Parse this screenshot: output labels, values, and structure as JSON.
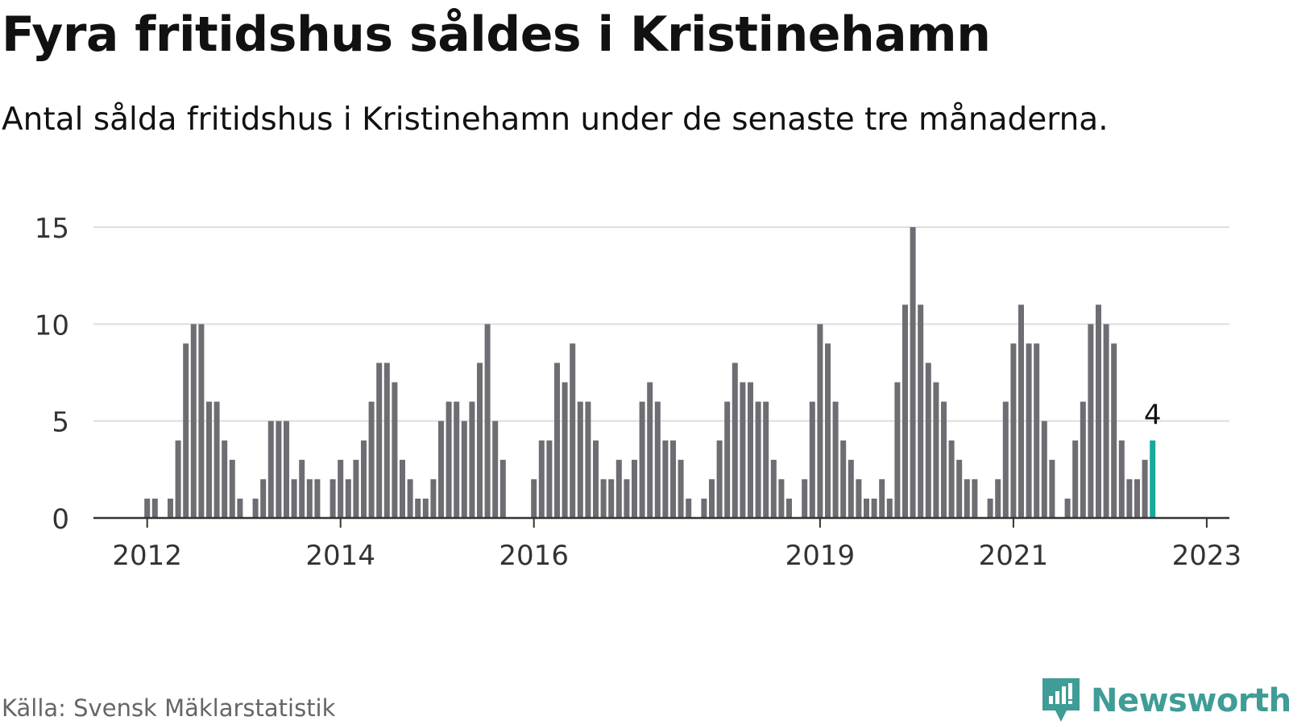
{
  "title": "Fyra fritidshus såldes i Kristinehamn",
  "subtitle": "Antal sålda fritidshus i Kristinehamn under de senaste tre månaderna.",
  "source": "Källa: Svensk Mäklarstatistik",
  "brand": {
    "name": "Newsworthy",
    "icon": "newsworthy-logo-icon",
    "color": "#3f9c96"
  },
  "colors": {
    "bar": "#6e6d73",
    "highlight": "#1aa89c",
    "grid": "#dddddd",
    "axis": "#333333"
  },
  "chart_data": {
    "type": "bar",
    "ylim": [
      0,
      15
    ],
    "yticks": [
      0,
      5,
      10,
      15
    ],
    "grid": true,
    "xtick_labels": [
      "2012",
      "2014",
      "2016",
      "2019",
      "2021",
      "2023"
    ],
    "xtick_index": [
      2,
      27,
      52,
      89,
      114,
      139
    ],
    "values": [
      0,
      0,
      1,
      1,
      0,
      1,
      4,
      9,
      10,
      10,
      6,
      6,
      4,
      3,
      1,
      0,
      1,
      2,
      5,
      5,
      5,
      2,
      3,
      2,
      2,
      0,
      2,
      3,
      2,
      3,
      4,
      6,
      8,
      8,
      7,
      3,
      2,
      1,
      1,
      2,
      5,
      6,
      6,
      5,
      6,
      8,
      10,
      5,
      3,
      0,
      0,
      0,
      2,
      4,
      4,
      8,
      7,
      9,
      6,
      6,
      4,
      2,
      2,
      3,
      2,
      3,
      6,
      7,
      6,
      4,
      4,
      3,
      1,
      0,
      1,
      2,
      4,
      6,
      8,
      7,
      7,
      6,
      6,
      3,
      2,
      1,
      0,
      2,
      6,
      10,
      9,
      6,
      4,
      3,
      2,
      1,
      1,
      2,
      1,
      7,
      11,
      15,
      11,
      8,
      7,
      6,
      4,
      3,
      2,
      2,
      0,
      1,
      2,
      6,
      9,
      11,
      9,
      9,
      5,
      3,
      0,
      1,
      4,
      6,
      10,
      11,
      10,
      9,
      4,
      2,
      2,
      3,
      4
    ],
    "highlight_label": "4"
  }
}
